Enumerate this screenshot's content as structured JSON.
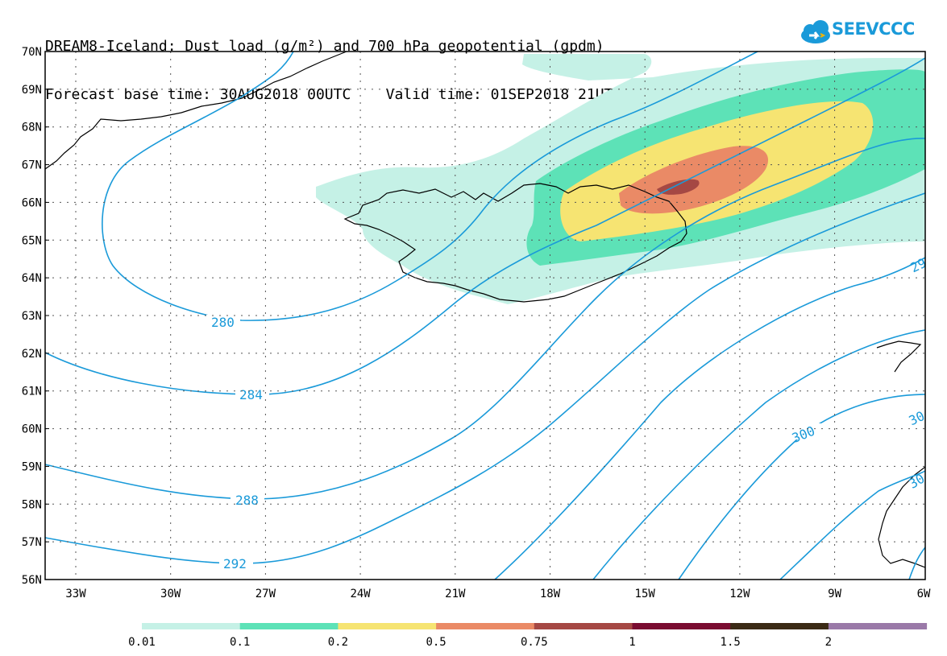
{
  "title": {
    "line1": "DREAM8-Iceland: Dust load (g/m²) and 700 hPa geopotential (gpdm)",
    "line2": "Forecast base time: 30AUG2018 00UTC    Valid time: 01SEP2018 21UTC (+69)"
  },
  "logo": {
    "text": "SEEVCCC",
    "color": "#1a9ad9",
    "icon": "cloud-icon"
  },
  "lat_labels": [
    "70N",
    "69N",
    "68N",
    "67N",
    "66N",
    "65N",
    "64N",
    "63N",
    "62N",
    "61N",
    "60N",
    "59N",
    "58N",
    "57N",
    "56N"
  ],
  "lon_labels": [
    "33W",
    "30W",
    "27W",
    "24W",
    "21W",
    "18W",
    "15W",
    "12W",
    "9W",
    "6W"
  ],
  "contour_labels": [
    "280",
    "284",
    "288",
    "292",
    "300",
    "29",
    "30",
    "30"
  ],
  "colorbar": {
    "colors": [
      "#c5f1e6",
      "#5de2b7",
      "#f6e472",
      "#ea8a66",
      "#a54844",
      "#7a0c31",
      "#3b2a15",
      "#9a79a8"
    ],
    "labels": [
      "0.01",
      "0.1",
      "0.2",
      "0.5",
      "0.75",
      "1",
      "1.5",
      "2"
    ]
  },
  "colors": {
    "contour": "#1a9ad9",
    "coast": "#000000"
  }
}
